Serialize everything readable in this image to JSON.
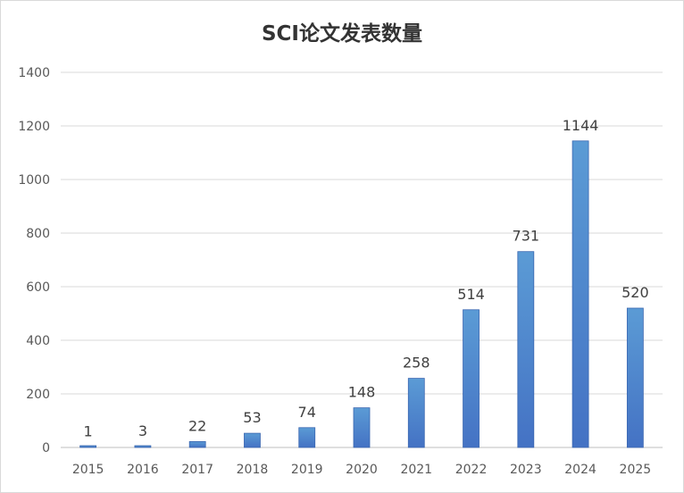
{
  "chart_data": {
    "type": "bar",
    "title": "SCI论文发表数量",
    "xlabel": "",
    "ylabel": "",
    "categories": [
      "2015",
      "2016",
      "2017",
      "2018",
      "2019",
      "2020",
      "2021",
      "2022",
      "2023",
      "2024",
      "2025"
    ],
    "values": [
      1,
      3,
      22,
      53,
      74,
      148,
      258,
      514,
      731,
      1144,
      520
    ],
    "ylim": [
      0,
      1400
    ],
    "yticks": [
      0,
      200,
      400,
      600,
      800,
      1000,
      1200,
      1400
    ],
    "grid": true,
    "legend": "none",
    "bar_color": "#4472c4",
    "bar_color_light": "#5b9bd5"
  }
}
